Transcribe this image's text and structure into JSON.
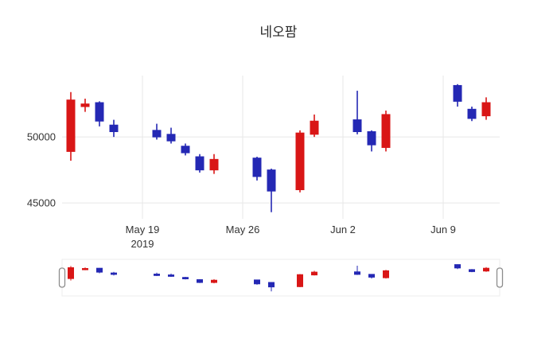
{
  "chart_data": {
    "type": "candlestick",
    "title": "네오팜",
    "increasing_color": "#d91616",
    "decreasing_color": "#2428b4",
    "grid_color": "#e7e7e7",
    "text_color": "#333333",
    "ylim": [
      43800,
      54650
    ],
    "yticks": [
      45000,
      50000
    ],
    "xticks": [
      {
        "date": "2019-05-19",
        "label": "May 19",
        "sublabel": "2019"
      },
      {
        "date": "2019-05-26",
        "label": "May 26",
        "sublabel": ""
      },
      {
        "date": "2019-06-02",
        "label": "Jun 2",
        "sublabel": ""
      },
      {
        "date": "2019-06-09",
        "label": "Jun 9",
        "sublabel": ""
      }
    ],
    "rangeslider": true,
    "series": [
      {
        "date": "2019-05-14",
        "open": 48900,
        "high": 53400,
        "low": 48200,
        "close": 52800
      },
      {
        "date": "2019-05-15",
        "open": 52300,
        "high": 52900,
        "low": 51900,
        "close": 52500
      },
      {
        "date": "2019-05-16",
        "open": 52600,
        "high": 52700,
        "low": 50800,
        "close": 51200
      },
      {
        "date": "2019-05-17",
        "open": 50900,
        "high": 51300,
        "low": 50000,
        "close": 50400
      },
      {
        "date": "2019-05-20",
        "open": 50500,
        "high": 51000,
        "low": 49800,
        "close": 50000
      },
      {
        "date": "2019-05-21",
        "open": 50200,
        "high": 50700,
        "low": 49500,
        "close": 49700
      },
      {
        "date": "2019-05-22",
        "open": 49300,
        "high": 49500,
        "low": 48600,
        "close": 48800
      },
      {
        "date": "2019-05-23",
        "open": 48500,
        "high": 48700,
        "low": 47300,
        "close": 47500
      },
      {
        "date": "2019-05-24",
        "open": 47500,
        "high": 48700,
        "low": 47200,
        "close": 48300
      },
      {
        "date": "2019-05-27",
        "open": 48400,
        "high": 48500,
        "low": 46700,
        "close": 47000
      },
      {
        "date": "2019-05-28",
        "open": 47500,
        "high": 47600,
        "low": 44300,
        "close": 45900
      },
      {
        "date": "2019-05-30",
        "open": 46000,
        "high": 50500,
        "low": 45800,
        "close": 50300
      },
      {
        "date": "2019-05-31",
        "open": 50200,
        "high": 51700,
        "low": 50000,
        "close": 51200
      },
      {
        "date": "2019-06-03",
        "open": 51300,
        "high": 53500,
        "low": 50200,
        "close": 50400
      },
      {
        "date": "2019-06-04",
        "open": 50400,
        "high": 50500,
        "low": 48900,
        "close": 49400
      },
      {
        "date": "2019-06-05",
        "open": 49200,
        "high": 52000,
        "low": 48900,
        "close": 51700
      },
      {
        "date": "2019-06-10",
        "open": 53900,
        "high": 54000,
        "low": 52300,
        "close": 52700
      },
      {
        "date": "2019-06-11",
        "open": 52100,
        "high": 52300,
        "low": 51200,
        "close": 51400
      },
      {
        "date": "2019-06-12",
        "open": 51600,
        "high": 53000,
        "low": 51300,
        "close": 52600
      }
    ]
  }
}
